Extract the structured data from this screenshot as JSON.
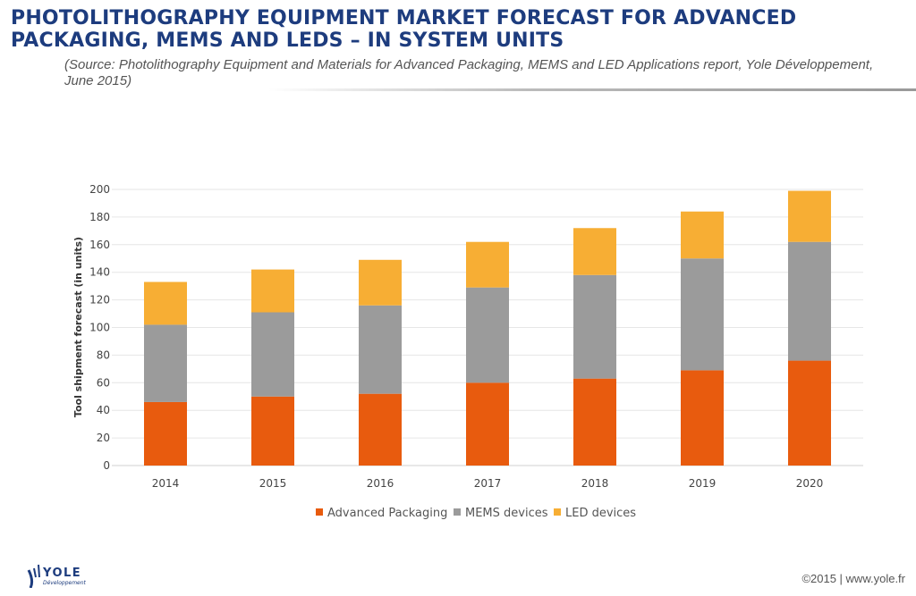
{
  "header": {
    "title": "PHOTOLITHOGRAPHY EQUIPMENT MARKET FORECAST FOR ADVANCED PACKAGING, MEMS AND LEDS – IN SYSTEM UNITS",
    "subtitle": "(Source: Photolithography Equipment and Materials for Advanced Packaging, MEMS and LED Applications report, Yole Développement, June 2015)"
  },
  "chart_data": {
    "type": "bar",
    "stacked": true,
    "categories": [
      "2014",
      "2015",
      "2016",
      "2017",
      "2018",
      "2019",
      "2020"
    ],
    "series": [
      {
        "name": "Advanced Packaging",
        "color": "#e85b0e",
        "values": [
          46,
          50,
          52,
          60,
          63,
          69,
          76
        ]
      },
      {
        "name": "MEMS devices",
        "color": "#9b9b9b",
        "values": [
          56,
          61,
          64,
          69,
          75,
          81,
          86
        ]
      },
      {
        "name": "LED devices",
        "color": "#f7ae34",
        "values": [
          31,
          31,
          33,
          33,
          34,
          34,
          37
        ]
      }
    ],
    "title": "",
    "xlabel": "",
    "ylabel": "Tool shipment forecast  (in units)",
    "ylim": [
      0,
      200
    ],
    "yticks": [
      "0",
      "20",
      "40",
      "60",
      "80",
      "100",
      "120",
      "140",
      "160",
      "180",
      "200"
    ],
    "grid": true,
    "legend": "bottom"
  },
  "logo": {
    "name": "YOLE",
    "tagline": "Développement"
  },
  "footer": {
    "text": "©2015 | www.yole.fr"
  }
}
